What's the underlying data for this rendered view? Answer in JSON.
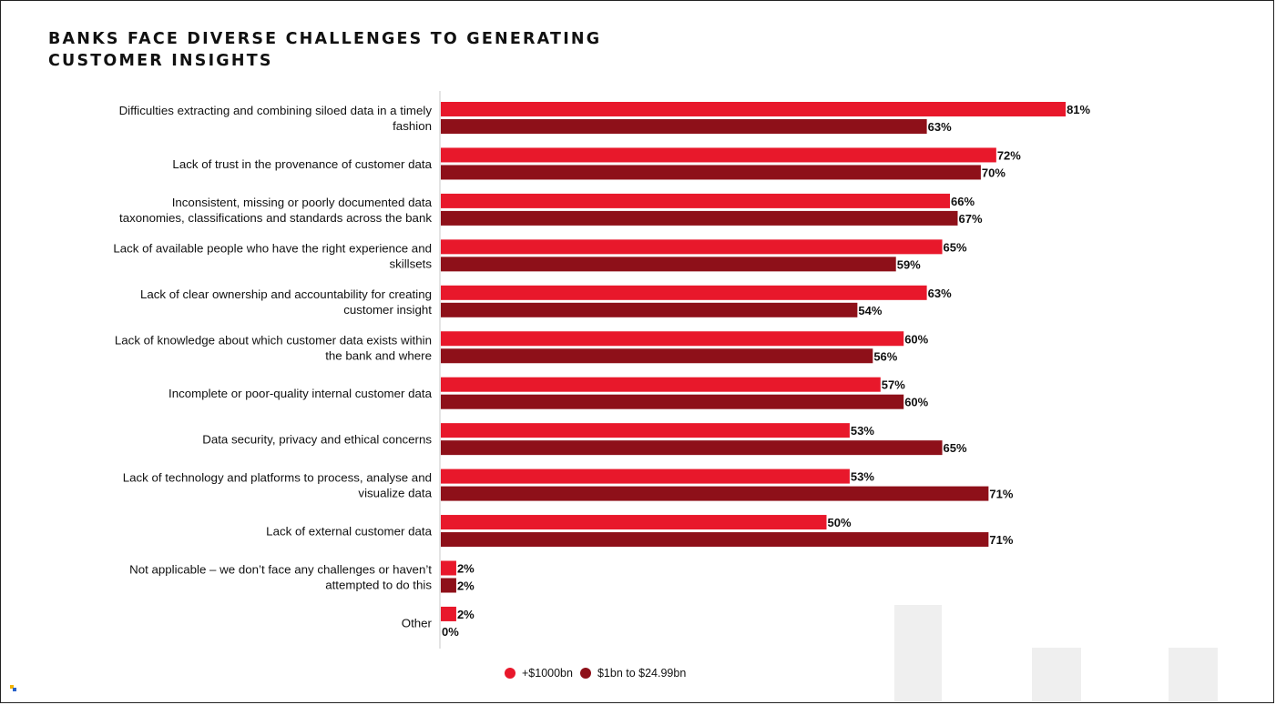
{
  "chart_data": {
    "type": "bar",
    "orientation": "horizontal",
    "title": "BANKS FACE DIVERSE CHALLENGES TO GENERATING CUSTOMER INSIGHTS",
    "title_lines": [
      "BANKS FACE DIVERSE CHALLENGES TO GENERATING",
      "CUSTOMER INSIGHTS"
    ],
    "xlim": [
      0,
      100
    ],
    "grid": false,
    "legend_position": "bottom-center",
    "categories": [
      [
        "Difficulties extracting and combining siloed data in a timely",
        "fashion"
      ],
      [
        "Lack of trust in the provenance of customer data"
      ],
      [
        "Inconsistent, missing or poorly documented data",
        "taxonomies, classifications and standards across the bank"
      ],
      [
        "Lack of available people who have the right experience and",
        "skillsets"
      ],
      [
        "Lack of clear ownership and accountability for creating",
        "customer insight"
      ],
      [
        "Lack of knowledge about which customer data exists within",
        "the bank and where"
      ],
      [
        "Incomplete or poor-quality internal customer data"
      ],
      [
        "Data security, privacy and ethical concerns"
      ],
      [
        "Lack of technology and platforms to process, analyse and",
        "visualize data"
      ],
      [
        "Lack of external customer data"
      ],
      [
        "Not applicable – we don’t face any challenges or haven’t",
        "attempted to do this"
      ],
      [
        "Other"
      ]
    ],
    "series": [
      {
        "name": "+$1000bn",
        "color": "#e8182b",
        "values": [
          81,
          72,
          66,
          65,
          63,
          60,
          57,
          53,
          53,
          50,
          2,
          2
        ],
        "labels": [
          "81%",
          "72%",
          "66%",
          "65%",
          "63%",
          "60%",
          "57%",
          "53%",
          "53%",
          "50%",
          "2%",
          "2%"
        ]
      },
      {
        "name": "$1bn to $24.99bn",
        "color": "#8e1019",
        "values": [
          63,
          70,
          67,
          59,
          54,
          56,
          60,
          65,
          71,
          71,
          2,
          0
        ],
        "labels": [
          "63%",
          "70%",
          "67%",
          "59%",
          "54%",
          "56%",
          "60%",
          "65%",
          "71%",
          "71%",
          "2%",
          "0%"
        ]
      }
    ]
  },
  "legend": {
    "items": [
      {
        "label": "+$1000bn",
        "color": "#e8182b"
      },
      {
        "label": "$1bn to $24.99bn",
        "color": "#8e1019"
      }
    ]
  }
}
